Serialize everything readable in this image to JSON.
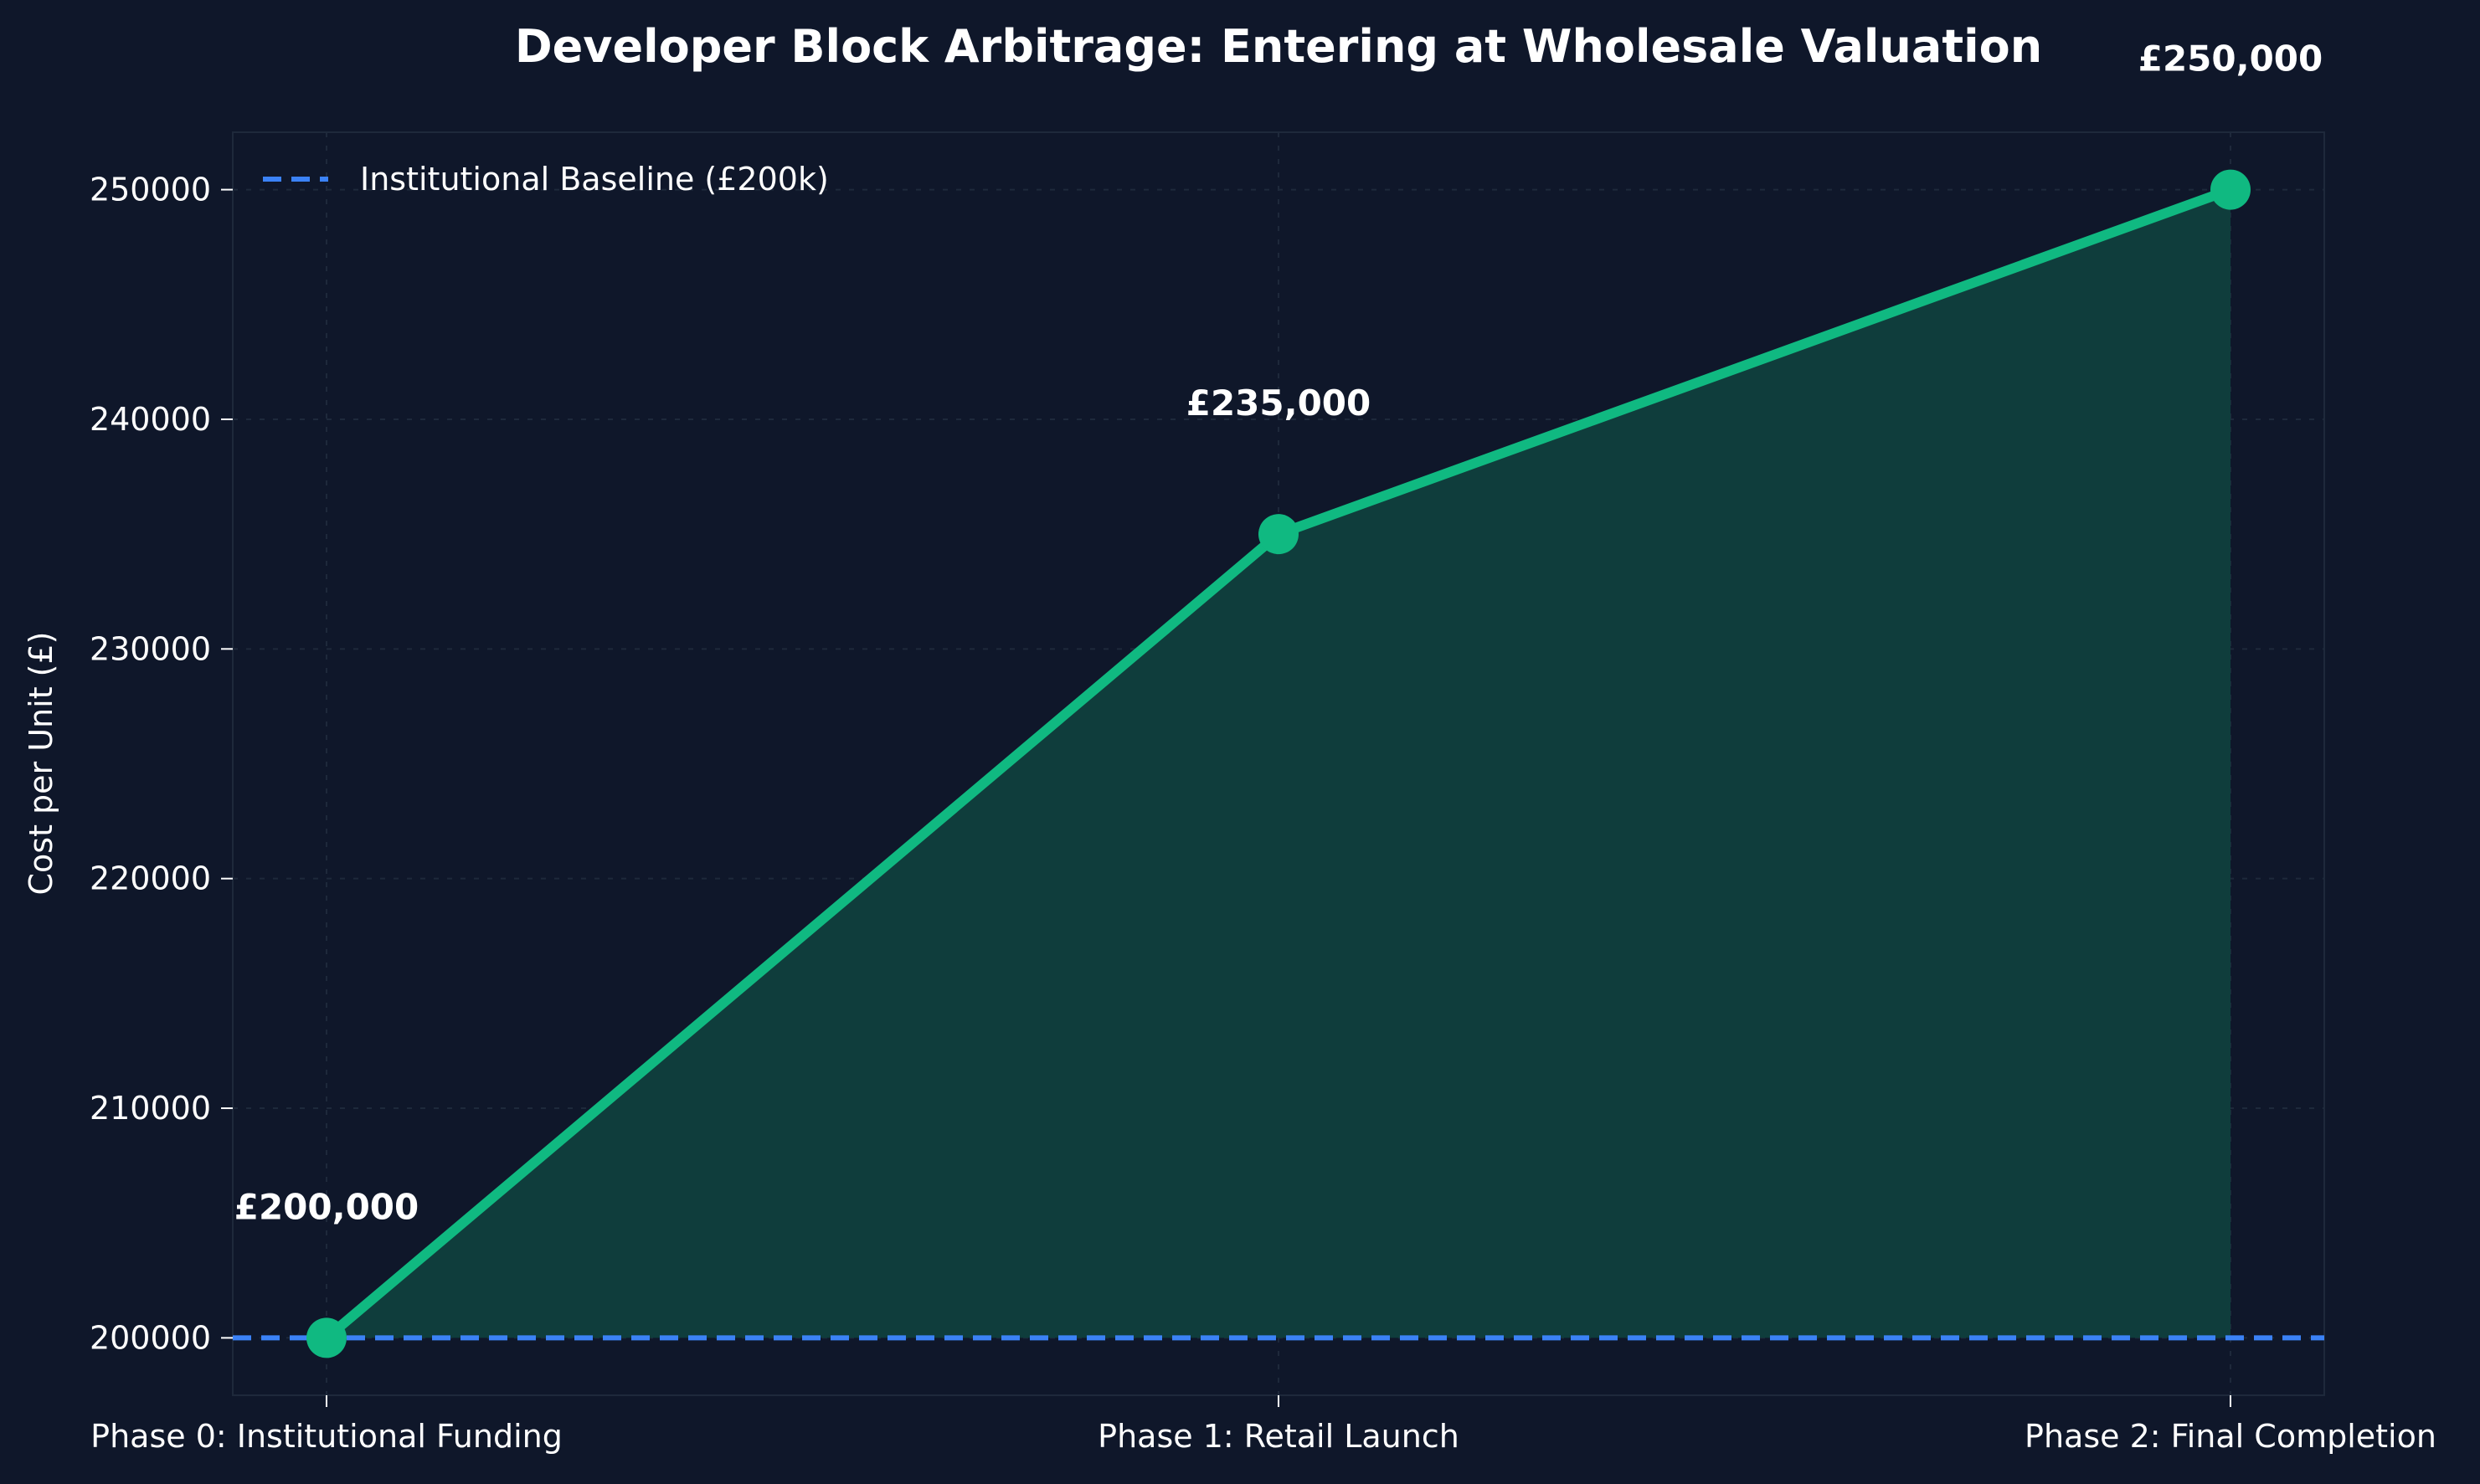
{
  "colors": {
    "background": "#0f172a",
    "line": "#10b981",
    "area_fill": "#0f3d3c",
    "baseline": "#3b82f6",
    "text": "#ffffff",
    "grid": "#1e293b",
    "spine": "#1e293b"
  },
  "chart_data": {
    "type": "line",
    "title": "Developer Block Arbitrage: Entering at Wholesale Valuation",
    "xlabel": "",
    "ylabel": "Cost per Unit (£)",
    "categories": [
      "Phase 0: Institutional Funding",
      "Phase 1: Retail Launch",
      "Phase 2: Final Completion"
    ],
    "series": [
      {
        "values": [
          200000,
          235000,
          250000
        ],
        "data_labels": [
          "£200,000",
          "£235,000",
          "£250,000"
        ],
        "fill_area": true
      }
    ],
    "reference_line": {
      "name": "Institutional Baseline (£200k)",
      "value": 200000,
      "style": "dashed"
    },
    "ylim": [
      197500,
      252500
    ],
    "yticks": [
      "200000",
      "210000",
      "220000",
      "230000",
      "240000",
      "250000"
    ],
    "grid": true,
    "legend_position": "top-left"
  }
}
